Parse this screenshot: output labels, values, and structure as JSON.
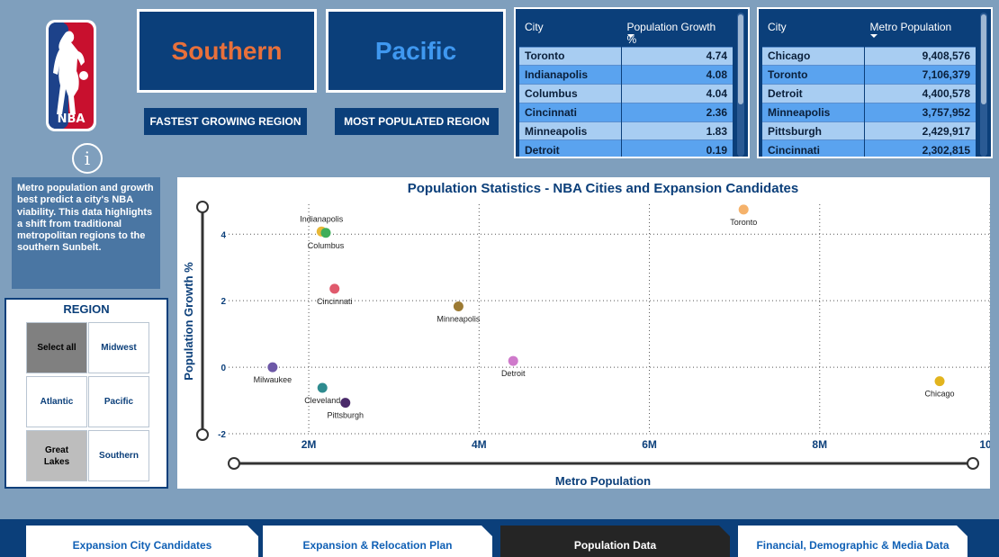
{
  "logo": {
    "icon": "nba-logo-icon",
    "text": "NBA",
    "colors": {
      "red": "#c8102e",
      "blue": "#1d428a"
    }
  },
  "info": {
    "icon": "info-icon",
    "glyph": "i"
  },
  "kpis": {
    "fastest": {
      "value": "Southern",
      "label": "FASTEST GROWING REGION",
      "color": "#e8703b"
    },
    "most": {
      "value": "Pacific",
      "label": "MOST POPULATED REGION",
      "color": "#3f98f0"
    }
  },
  "growth_table": {
    "headers": [
      "City",
      "Population Growth %"
    ],
    "rows": [
      [
        "Toronto",
        "4.74"
      ],
      [
        "Indianapolis",
        "4.08"
      ],
      [
        "Columbus",
        "4.04"
      ],
      [
        "Cincinnati",
        "2.36"
      ],
      [
        "Minneapolis",
        "1.83"
      ],
      [
        "Detroit",
        "0.19"
      ]
    ]
  },
  "metro_table": {
    "headers": [
      "City",
      "Metro Population"
    ],
    "rows": [
      [
        "Chicago",
        "9,408,576"
      ],
      [
        "Toronto",
        "7,106,379"
      ],
      [
        "Detroit",
        "4,400,578"
      ],
      [
        "Minneapolis",
        "3,757,952"
      ],
      [
        "Pittsburgh",
        "2,429,917"
      ],
      [
        "Cincinnati",
        "2,302,815"
      ]
    ]
  },
  "description": "Metro population and growth best predict a city's NBA viability. This data highlights a shift from traditional metropolitan regions to the southern Sunbelt.",
  "slicer": {
    "title": "REGION",
    "buttons": [
      "Select all",
      "Midwest",
      "Atlantic",
      "Pacific",
      "Great Lakes",
      "Southern"
    ]
  },
  "chart_data": {
    "type": "scatter",
    "title": "Population Statistics - NBA Cities and Expansion Candidates",
    "xlabel": "Metro Population",
    "ylabel": "Population Growth %",
    "xlim": [
      900000,
      10000000
    ],
    "ylim": [
      -2,
      4.9
    ],
    "x_ticks": [
      {
        "value": 2000000,
        "label": "2M"
      },
      {
        "value": 4000000,
        "label": "4M"
      },
      {
        "value": 6000000,
        "label": "6M"
      },
      {
        "value": 8000000,
        "label": "8M"
      },
      {
        "value": 10000000,
        "label": "10M"
      }
    ],
    "y_ticks": [
      {
        "value": -2,
        "label": "-2"
      },
      {
        "value": 0,
        "label": "0"
      },
      {
        "value": 2,
        "label": "2"
      },
      {
        "value": 4,
        "label": "4"
      }
    ],
    "grid": true,
    "points": [
      {
        "name": "Toronto",
        "x": 7106379,
        "y": 4.74,
        "color": "#f5b26b"
      },
      {
        "name": "Indianapolis",
        "x": 2150000,
        "y": 4.08,
        "color": "#e7b837"
      },
      {
        "name": "Columbus",
        "x": 2200000,
        "y": 4.04,
        "color": "#3fae5a"
      },
      {
        "name": "Cincinnati",
        "x": 2302815,
        "y": 2.36,
        "color": "#e05a6d"
      },
      {
        "name": "Minneapolis",
        "x": 3757952,
        "y": 1.83,
        "color": "#9c7a33"
      },
      {
        "name": "Detroit",
        "x": 4400578,
        "y": 0.19,
        "color": "#cf7acb"
      },
      {
        "name": "Milwaukee",
        "x": 1575000,
        "y": 0.0,
        "color": "#6d58a7"
      },
      {
        "name": "Cleveland",
        "x": 2160000,
        "y": -0.62,
        "color": "#2e8b8f"
      },
      {
        "name": "Pittsburgh",
        "x": 2429917,
        "y": -1.07,
        "color": "#4a2a6a"
      },
      {
        "name": "Chicago",
        "x": 9408576,
        "y": -0.42,
        "color": "#e2b41e"
      }
    ]
  },
  "tabs": [
    {
      "label": "Expansion City Candidates",
      "active": false
    },
    {
      "label": "Expansion & Relocation Plan",
      "active": false
    },
    {
      "label": "Population Data",
      "active": true
    },
    {
      "label": "Financial, Demographic & Media Data",
      "active": false
    }
  ]
}
